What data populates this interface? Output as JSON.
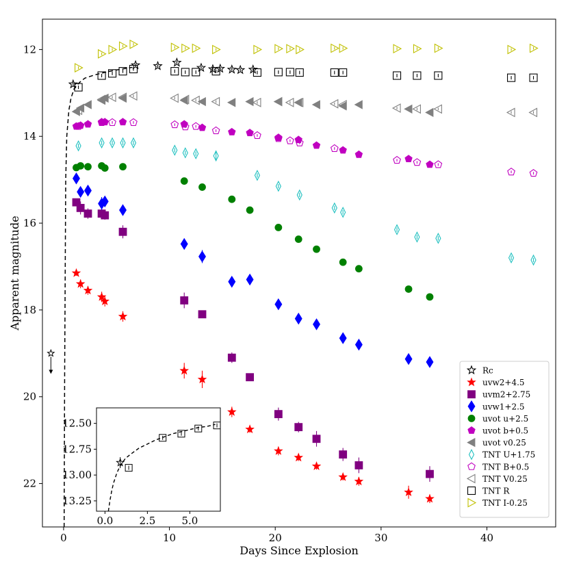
{
  "chart_data": {
    "type": "scatter",
    "xlabel": "Days Since Explosion",
    "ylabel": "Apparent magnitude",
    "xlim": [
      -2.0,
      46.5
    ],
    "ylim": [
      23.0,
      11.3
    ],
    "xticks": [
      0,
      10,
      20,
      30,
      40
    ],
    "xtick_labels": [
      "0",
      "10",
      "20",
      "30",
      "40"
    ],
    "yticks": [
      12,
      14,
      16,
      18,
      20,
      22
    ],
    "ytick_labels": [
      "12",
      "14",
      "16",
      "18",
      "20",
      "22"
    ],
    "upper_limit": {
      "x": -1.2,
      "y": 19.0
    },
    "fit_curve": {
      "style": "dashed",
      "color": "#000000",
      "x": [
        0.05,
        0.1,
        0.2,
        0.3,
        0.5,
        0.7,
        1.0,
        1.5,
        2.0,
        3.0,
        4.0,
        5.0,
        6.0,
        6.5
      ],
      "y": [
        23.0,
        19.5,
        15.0,
        14.0,
        13.4,
        13.12,
        12.9,
        12.76,
        12.66,
        12.58,
        12.52,
        12.47,
        12.43,
        12.41
      ]
    },
    "series": [
      {
        "name": "Rc",
        "marker": "star-open",
        "color": "#000000",
        "x": [
          0.9,
          6.8,
          8.9,
          10.7,
          13.0,
          14.1,
          14.8,
          15.9,
          16.7,
          17.9
        ],
        "y": [
          12.8,
          12.36,
          12.38,
          12.3,
          12.42,
          12.45,
          12.44,
          12.46,
          12.47,
          12.46
        ],
        "err": [
          0.04,
          0.03,
          0.03,
          0.03,
          0.03,
          0.03,
          0.03,
          0.03,
          0.03,
          0.03
        ]
      },
      {
        "name": "uvw2+4.5",
        "marker": "star",
        "color": "#ff0000",
        "x": [
          1.2,
          1.6,
          2.3,
          3.6,
          3.9,
          5.6,
          11.4,
          13.1,
          15.9,
          17.6,
          20.3,
          22.2,
          23.9,
          26.4,
          27.9,
          32.6,
          34.6
        ],
        "y": [
          17.15,
          17.4,
          17.55,
          17.7,
          17.8,
          18.15,
          19.4,
          19.6,
          20.35,
          20.75,
          21.25,
          21.4,
          21.6,
          21.85,
          21.95,
          22.2,
          22.35
        ],
        "err": [
          0.06,
          0.1,
          0.1,
          0.12,
          0.12,
          0.12,
          0.18,
          0.2,
          0.12,
          0.08,
          0.1,
          0.08,
          0.08,
          0.08,
          0.1,
          0.15,
          0.1
        ]
      },
      {
        "name": "uvm2+2.75",
        "marker": "square",
        "color": "#800080",
        "x": [
          1.2,
          1.6,
          2.3,
          3.6,
          3.9,
          5.6,
          11.4,
          13.1,
          15.9,
          17.6,
          20.3,
          22.2,
          23.9,
          26.4,
          27.9,
          34.6
        ],
        "y": [
          15.52,
          15.65,
          15.78,
          15.78,
          15.82,
          16.2,
          17.78,
          18.1,
          19.1,
          19.55,
          20.4,
          20.7,
          20.97,
          21.33,
          21.58,
          21.78
        ],
        "err": [
          0.06,
          0.15,
          0.12,
          0.12,
          0.1,
          0.15,
          0.18,
          0.08,
          0.12,
          0.05,
          0.15,
          0.12,
          0.18,
          0.15,
          0.18,
          0.18
        ]
      },
      {
        "name": "uvw1+2.5",
        "marker": "diamond",
        "color": "#0000ff",
        "x": [
          1.2,
          1.6,
          2.3,
          3.6,
          3.9,
          5.6,
          11.4,
          13.1,
          15.9,
          17.6,
          20.3,
          22.2,
          23.9,
          26.4,
          27.9,
          32.6,
          34.6
        ],
        "y": [
          14.97,
          15.28,
          15.25,
          15.55,
          15.5,
          15.7,
          16.48,
          16.77,
          17.35,
          17.3,
          17.87,
          18.2,
          18.33,
          18.65,
          18.8,
          19.13,
          19.2
        ],
        "err": [
          0.08,
          0.1,
          0.12,
          0.15,
          0.1,
          0.12,
          0.12,
          0.15,
          0.1,
          0.1,
          0.1,
          0.1,
          0.1,
          0.1,
          0.1,
          0.1,
          0.1
        ]
      },
      {
        "name": "uvot u+2.5",
        "marker": "circle",
        "color": "#008000",
        "x": [
          1.2,
          1.6,
          2.3,
          3.6,
          3.9,
          5.6,
          11.4,
          13.1,
          15.9,
          17.6,
          20.3,
          22.2,
          23.9,
          26.4,
          27.9,
          32.6,
          34.6
        ],
        "y": [
          14.72,
          14.68,
          14.7,
          14.68,
          14.73,
          14.7,
          15.03,
          15.17,
          15.45,
          15.7,
          16.1,
          16.37,
          16.6,
          16.9,
          17.05,
          17.52,
          17.7
        ],
        "err": [
          0.03,
          0.03,
          0.03,
          0.03,
          0.03,
          0.03,
          0.03,
          0.03,
          0.03,
          0.03,
          0.03,
          0.03,
          0.03,
          0.03,
          0.03,
          0.03,
          0.03
        ]
      },
      {
        "name": "uvot b+0.5",
        "marker": "pentagon",
        "color": "#c000c0",
        "x": [
          1.2,
          1.6,
          2.3,
          3.6,
          3.9,
          5.6,
          11.4,
          13.1,
          15.9,
          17.6,
          20.3,
          22.2,
          23.9,
          26.4,
          27.9,
          32.6,
          34.6
        ],
        "y": [
          13.77,
          13.75,
          13.72,
          13.67,
          13.67,
          13.67,
          13.72,
          13.8,
          13.9,
          13.92,
          14.03,
          14.08,
          14.21,
          14.32,
          14.42,
          14.52,
          14.65
        ],
        "err": [
          0.03,
          0.03,
          0.03,
          0.03,
          0.03,
          0.03,
          0.03,
          0.03,
          0.03,
          0.03,
          0.03,
          0.03,
          0.03,
          0.03,
          0.03,
          0.03,
          0.03
        ]
      },
      {
        "name": "uvot v0.25",
        "marker": "triangle-left",
        "color": "#808080",
        "x": [
          1.2,
          1.6,
          2.3,
          3.6,
          3.9,
          5.6,
          11.4,
          13.1,
          15.9,
          17.6,
          20.3,
          22.2,
          23.9,
          26.4,
          27.9,
          32.6,
          34.6
        ],
        "y": [
          13.43,
          13.35,
          13.27,
          13.17,
          13.12,
          13.12,
          13.17,
          13.2,
          13.22,
          13.2,
          13.2,
          13.22,
          13.27,
          13.3,
          13.27,
          13.37,
          13.45
        ],
        "err": [
          0.03,
          0.03,
          0.03,
          0.03,
          0.03,
          0.03,
          0.03,
          0.03,
          0.03,
          0.03,
          0.03,
          0.03,
          0.03,
          0.03,
          0.03,
          0.03,
          0.03
        ]
      },
      {
        "name": "TNT U+1.75",
        "marker": "thin-diamond-open",
        "color": "#20c0c0",
        "x": [
          1.4,
          3.6,
          4.6,
          5.6,
          6.6,
          10.5,
          11.5,
          12.5,
          14.4,
          18.3,
          20.3,
          22.3,
          25.6,
          26.4,
          31.5,
          33.4,
          35.4,
          42.3,
          44.4
        ],
        "y": [
          14.22,
          14.15,
          14.15,
          14.15,
          14.15,
          14.32,
          14.38,
          14.4,
          14.45,
          14.9,
          15.15,
          15.35,
          15.65,
          15.75,
          16.15,
          16.32,
          16.35,
          16.8,
          16.85
        ],
        "err": [
          0.05,
          0.05,
          0.05,
          0.05,
          0.05,
          0.05,
          0.05,
          0.05,
          0.12,
          0.05,
          0.05,
          0.05,
          0.05,
          0.05,
          0.05,
          0.05,
          0.05,
          0.05,
          0.05
        ]
      },
      {
        "name": "TNT B+0.5",
        "marker": "pentagon-open",
        "color": "#c000c0",
        "x": [
          1.4,
          3.6,
          4.6,
          6.6,
          10.5,
          11.5,
          12.5,
          14.4,
          18.3,
          20.3,
          21.4,
          22.3,
          25.6,
          31.5,
          33.4,
          35.4,
          42.3,
          44.4
        ],
        "y": [
          13.77,
          13.68,
          13.68,
          13.68,
          13.73,
          13.78,
          13.77,
          13.87,
          13.98,
          14.05,
          14.1,
          14.15,
          14.28,
          14.55,
          14.6,
          14.65,
          14.82,
          14.85
        ],
        "err": [
          0.03,
          0.03,
          0.03,
          0.03,
          0.03,
          0.03,
          0.03,
          0.03,
          0.03,
          0.03,
          0.03,
          0.03,
          0.03,
          0.03,
          0.03,
          0.03,
          0.03,
          0.03
        ]
      },
      {
        "name": "TNT V0.25",
        "marker": "triangle-left-open",
        "color": "#808080",
        "x": [
          1.4,
          3.6,
          4.6,
          5.6,
          6.6,
          10.5,
          11.5,
          12.5,
          14.4,
          18.3,
          20.3,
          21.4,
          22.3,
          25.6,
          26.4,
          31.5,
          33.4,
          35.4,
          42.3,
          44.4
        ],
        "y": [
          13.4,
          13.15,
          13.1,
          13.1,
          13.07,
          13.12,
          13.15,
          13.17,
          13.2,
          13.22,
          13.2,
          13.22,
          13.22,
          13.25,
          13.27,
          13.35,
          13.37,
          13.37,
          13.45,
          13.45
        ],
        "err": [
          0.03,
          0.03,
          0.03,
          0.03,
          0.03,
          0.03,
          0.03,
          0.03,
          0.03,
          0.03,
          0.03,
          0.03,
          0.03,
          0.03,
          0.03,
          0.03,
          0.03,
          0.03,
          0.03,
          0.03
        ]
      },
      {
        "name": "TNT R",
        "marker": "square-open",
        "color": "#000000",
        "x": [
          1.4,
          3.6,
          4.6,
          5.6,
          6.6,
          10.5,
          11.5,
          12.5,
          14.4,
          18.3,
          20.3,
          21.4,
          22.3,
          25.6,
          26.4,
          31.5,
          33.4,
          35.4,
          42.3,
          44.4
        ],
        "y": [
          12.87,
          12.6,
          12.55,
          12.5,
          12.45,
          12.5,
          12.52,
          12.52,
          12.5,
          12.53,
          12.52,
          12.52,
          12.53,
          12.53,
          12.53,
          12.6,
          12.6,
          12.6,
          12.65,
          12.65
        ],
        "err": [
          0.04,
          0.04,
          0.04,
          0.04,
          0.04,
          0.04,
          0.04,
          0.04,
          0.04,
          0.04,
          0.04,
          0.04,
          0.04,
          0.04,
          0.04,
          0.04,
          0.04,
          0.04,
          0.04,
          0.04
        ]
      },
      {
        "name": "TNT I-0.25",
        "marker": "triangle-right-open",
        "color": "#c0c000",
        "x": [
          1.4,
          3.6,
          4.6,
          5.6,
          6.6,
          10.5,
          11.5,
          12.5,
          14.4,
          18.3,
          20.3,
          21.4,
          22.3,
          25.6,
          26.4,
          31.5,
          33.4,
          35.4,
          42.3,
          44.4
        ],
        "y": [
          12.42,
          12.1,
          12.0,
          11.92,
          11.88,
          11.95,
          11.97,
          11.97,
          12.0,
          12.0,
          11.98,
          11.98,
          12.0,
          11.97,
          11.97,
          11.98,
          11.98,
          11.97,
          12.0,
          11.97
        ],
        "err": [
          0.03,
          0.03,
          0.03,
          0.03,
          0.03,
          0.03,
          0.03,
          0.03,
          0.03,
          0.03,
          0.03,
          0.03,
          0.03,
          0.03,
          0.03,
          0.03,
          0.03,
          0.03,
          0.03,
          0.03
        ]
      }
    ],
    "inset": {
      "xlim": [
        -0.5,
        6.8
      ],
      "ylim": [
        13.35,
        12.35
      ],
      "xticks": [
        0.0,
        2.5,
        5.0
      ],
      "xtick_labels": [
        "0.0",
        "2.5",
        "5.0"
      ],
      "yticks": [
        12.5,
        12.75,
        13.0,
        13.25
      ],
      "ytick_labels": [
        "12.50",
        "12.75",
        "13.00",
        "13.25"
      ],
      "fit_x": [
        0.2,
        0.3,
        0.4,
        0.5,
        0.7,
        0.9,
        1.2,
        1.5,
        2.0,
        2.5,
        3.0,
        3.5,
        4.0,
        4.5,
        5.0,
        5.5,
        6.0,
        6.5
      ],
      "fit_y": [
        13.35,
        13.24,
        13.15,
        13.08,
        12.98,
        12.91,
        12.84,
        12.8,
        12.74,
        12.7,
        12.66,
        12.63,
        12.6,
        12.58,
        12.56,
        12.54,
        12.53,
        12.51
      ],
      "rc": {
        "x": 0.9,
        "y": 12.88
      },
      "tnt_r": {
        "x": [
          1.4,
          3.4,
          4.5,
          5.5,
          6.6
        ],
        "y": [
          12.93,
          12.64,
          12.6,
          12.55,
          12.52
        ]
      }
    }
  }
}
